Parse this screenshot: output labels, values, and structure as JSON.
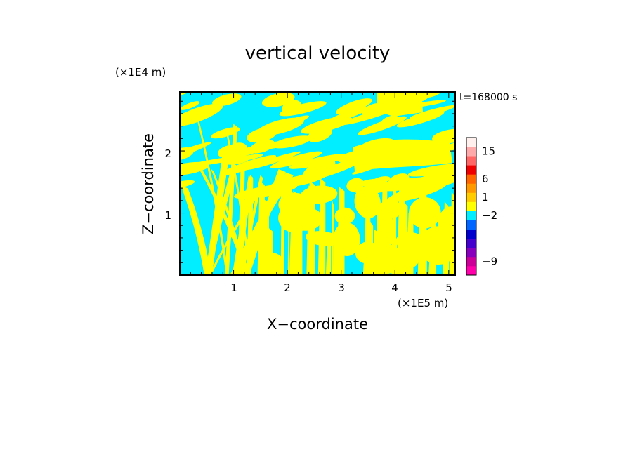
{
  "chart_data": {
    "type": "heatmap",
    "title": "vertical velocity",
    "xlabel": "X−coordinate",
    "ylabel": "Z−coordinate",
    "x_unit": "(×1E5 m)",
    "y_unit": "(×1E4 m)",
    "time_label": "t=168000 s",
    "xlim": [
      0,
      5.12
    ],
    "ylim": [
      0,
      2.95
    ],
    "x_ticks": [
      1,
      2,
      3,
      4,
      5
    ],
    "y_ticks": [
      1,
      2
    ],
    "x_tick_labels": [
      "1",
      "2",
      "3",
      "4",
      "5"
    ],
    "y_tick_labels": [
      "1",
      "2"
    ],
    "field_colors": {
      "positive": "#ffff00",
      "negative": "#00eeff"
    },
    "colorbar": {
      "bins": [
        {
          "color": "#ff00aa"
        },
        {
          "color": "#cc0099"
        },
        {
          "color": "#8800bb"
        },
        {
          "color": "#4400cc"
        },
        {
          "color": "#0000cc"
        },
        {
          "color": "#0066ff"
        },
        {
          "color": "#00eeff"
        },
        {
          "color": "#ffff00"
        },
        {
          "color": "#ffcc00"
        },
        {
          "color": "#ff9900"
        },
        {
          "color": "#ff6600"
        },
        {
          "color": "#ee0000"
        },
        {
          "color": "#ff6666"
        },
        {
          "color": "#ffaaaa"
        },
        {
          "color": "#fff0ee"
        }
      ],
      "labels": [
        {
          "text": "15",
          "bin": 13
        },
        {
          "text": "6",
          "bin": 10
        },
        {
          "text": "1",
          "bin": 8
        },
        {
          "text": "−2",
          "bin": 6
        },
        {
          "text": "−9",
          "bin": 1
        }
      ]
    }
  }
}
